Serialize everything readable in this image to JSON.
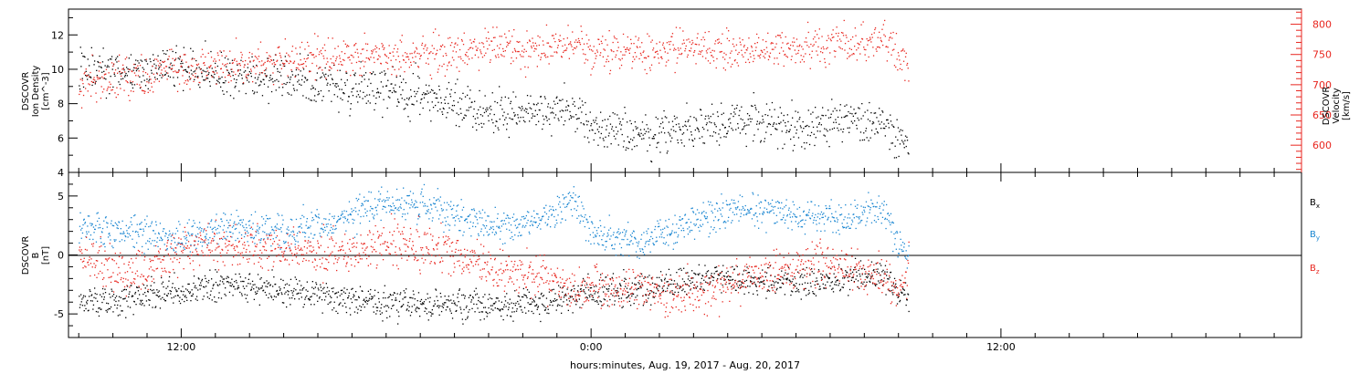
{
  "x_axis": {
    "label": "hours:minutes, Aug. 19, 2017 - Aug. 20, 2017",
    "tick_labels": [
      "12:00",
      "0:00",
      "12:00"
    ]
  },
  "colors": {
    "black": "#000000",
    "red": "#e8261f",
    "blue": "#1a86d1"
  },
  "chart_data": [
    {
      "type": "scatter",
      "panel": "top",
      "x_range_hours": [
        -15.3,
        20.8
      ],
      "left_axis": {
        "label_lines": [
          "DSCOVR",
          "Ion Density",
          "[cm^-3]"
        ],
        "range": [
          4,
          13.5
        ],
        "ticks": [
          "4",
          "6",
          "8",
          "10",
          "12"
        ]
      },
      "right_axis": {
        "label_lines": [
          "DSCOVR",
          "Velocity",
          "[km/s]"
        ],
        "range": [
          555,
          825
        ],
        "ticks": [
          "600",
          "650",
          "700",
          "750",
          "800"
        ],
        "color": "red"
      },
      "series": [
        {
          "color": "black",
          "axis": "left",
          "knots": [
            [
              -15.0,
              10.0
            ],
            [
              -13.5,
              9.8
            ],
            [
              -12.0,
              10.2
            ],
            [
              -10.5,
              9.5
            ],
            [
              -9.0,
              9.5
            ],
            [
              -7.5,
              9.0
            ],
            [
              -6.0,
              8.8
            ],
            [
              -4.5,
              8.2
            ],
            [
              -3.0,
              7.5
            ],
            [
              -1.5,
              7.8
            ],
            [
              -0.5,
              7.5
            ],
            [
              0.0,
              6.5
            ],
            [
              1.5,
              6.2
            ],
            [
              3.0,
              6.6
            ],
            [
              4.5,
              7.0
            ],
            [
              6.0,
              6.5
            ],
            [
              7.5,
              7.2
            ],
            [
              8.5,
              6.8
            ],
            [
              9.0,
              6.0
            ],
            [
              9.3,
              5.5
            ]
          ]
        },
        {
          "color": "red",
          "axis": "right",
          "knots": [
            [
              -15.0,
              700
            ],
            [
              -13.5,
              715
            ],
            [
              -12.0,
              725
            ],
            [
              -10.5,
              735
            ],
            [
              -9.0,
              740
            ],
            [
              -7.5,
              745
            ],
            [
              -6.0,
              750
            ],
            [
              -4.5,
              755
            ],
            [
              -3.0,
              758
            ],
            [
              -1.5,
              760
            ],
            [
              -0.5,
              765
            ],
            [
              0.0,
              755
            ],
            [
              1.5,
              760
            ],
            [
              3.0,
              755
            ],
            [
              4.5,
              760
            ],
            [
              6.0,
              760
            ],
            [
              7.5,
              765
            ],
            [
              8.5,
              775
            ],
            [
              9.0,
              750
            ],
            [
              9.3,
              720
            ]
          ]
        }
      ]
    },
    {
      "type": "scatter",
      "panel": "bottom",
      "x_range_hours": [
        -15.3,
        20.8
      ],
      "left_axis": {
        "label_lines": [
          "DSCOVR",
          "B",
          "[nT]"
        ],
        "range": [
          -7,
          7
        ],
        "ticks": [
          "-5",
          "0",
          "5"
        ]
      },
      "legend": {
        "placement": "right",
        "entries": [
          {
            "base": "B",
            "sub": "x",
            "color": "black"
          },
          {
            "base": "B",
            "sub": "y",
            "color": "blue"
          },
          {
            "base": "B",
            "sub": "z",
            "color": "red"
          }
        ]
      },
      "series": [
        {
          "name": "Bx",
          "color": "black",
          "knots": [
            [
              -15.0,
              -4.0
            ],
            [
              -13.5,
              -3.5
            ],
            [
              -12.0,
              -3.0
            ],
            [
              -10.5,
              -2.5
            ],
            [
              -9.0,
              -3.0
            ],
            [
              -7.5,
              -3.5
            ],
            [
              -6.0,
              -4.0
            ],
            [
              -4.5,
              -4.2
            ],
            [
              -3.0,
              -4.3
            ],
            [
              -1.5,
              -4.0
            ],
            [
              -0.5,
              -3.5
            ],
            [
              0.0,
              -3.0
            ],
            [
              1.5,
              -3.0
            ],
            [
              3.0,
              -2.0
            ],
            [
              4.5,
              -2.0
            ],
            [
              6.0,
              -2.5
            ],
            [
              7.5,
              -2.0
            ],
            [
              8.5,
              -1.5
            ],
            [
              9.0,
              -3.0
            ],
            [
              9.3,
              -3.5
            ]
          ]
        },
        {
          "name": "By",
          "color": "blue",
          "knots": [
            [
              -15.0,
              2.5
            ],
            [
              -13.5,
              2.0
            ],
            [
              -12.0,
              1.5
            ],
            [
              -10.5,
              2.5
            ],
            [
              -9.0,
              2.0
            ],
            [
              -7.5,
              3.0
            ],
            [
              -6.0,
              4.5
            ],
            [
              -4.5,
              4.0
            ],
            [
              -3.0,
              2.5
            ],
            [
              -1.5,
              3.0
            ],
            [
              -0.5,
              4.5
            ],
            [
              0.0,
              2.0
            ],
            [
              1.5,
              1.0
            ],
            [
              3.0,
              3.0
            ],
            [
              4.5,
              4.0
            ],
            [
              6.0,
              3.5
            ],
            [
              7.5,
              3.0
            ],
            [
              8.5,
              4.0
            ],
            [
              9.0,
              1.0
            ],
            [
              9.3,
              -0.5
            ]
          ]
        },
        {
          "name": "Bz",
          "color": "red",
          "knots": [
            [
              -15.0,
              0.0
            ],
            [
              -13.5,
              -2.0
            ],
            [
              -12.0,
              0.5
            ],
            [
              -10.5,
              1.0
            ],
            [
              -9.0,
              0.5
            ],
            [
              -7.5,
              0.0
            ],
            [
              -6.0,
              1.0
            ],
            [
              -4.5,
              0.5
            ],
            [
              -3.0,
              -1.0
            ],
            [
              -1.5,
              -1.5
            ],
            [
              -0.5,
              -3.0
            ],
            [
              0.0,
              -2.5
            ],
            [
              1.5,
              -3.0
            ],
            [
              3.0,
              -3.5
            ],
            [
              4.5,
              -2.0
            ],
            [
              6.0,
              -1.0
            ],
            [
              7.5,
              -1.0
            ],
            [
              8.5,
              -2.0
            ],
            [
              9.0,
              -3.0
            ],
            [
              9.3,
              -1.0
            ]
          ]
        }
      ]
    }
  ]
}
